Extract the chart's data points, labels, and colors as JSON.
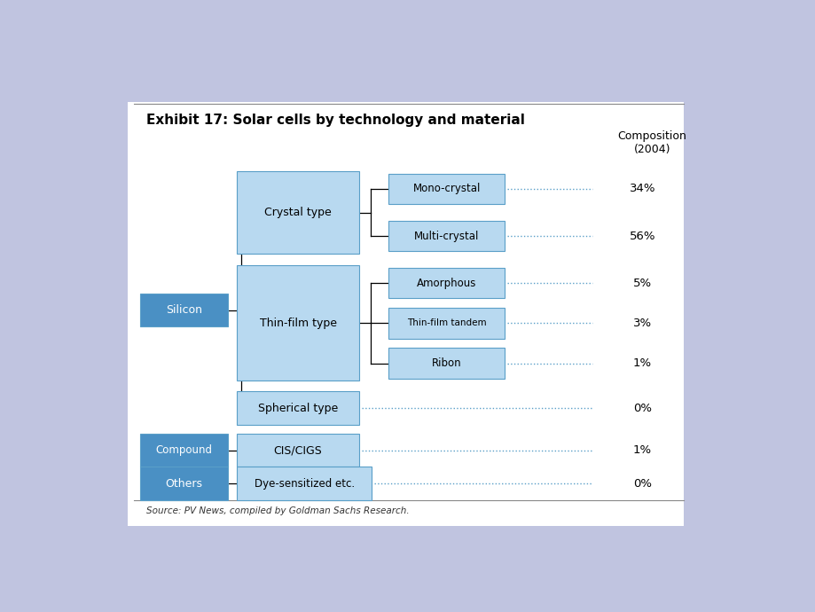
{
  "title": "Exhibit 17: Solar cells by technology and material",
  "composition_label": "Composition\n(2004)",
  "source_text": "Source: PV News, compiled by Goldman Sachs Research.",
  "background_color": "#ffffff",
  "slide_bg": "#c0c4e0",
  "box_light": "#b8d9f0",
  "box_dark": "#4a90c4",
  "box_edge": "#5a9fc8",
  "line_color": "#000000",
  "dot_color": "#5a9fc8",
  "pct_color": "#000000"
}
